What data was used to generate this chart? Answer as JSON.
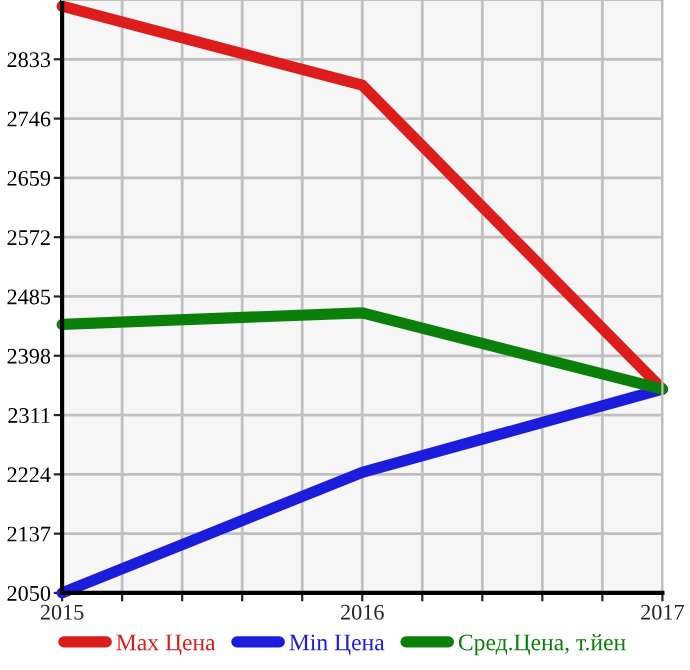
{
  "chart_data": {
    "type": "line",
    "x": [
      2015,
      2016,
      2017
    ],
    "series": [
      {
        "name": "Max Цена",
        "color": "#dd1c1c",
        "values": [
          2911,
          2795,
          2349
        ]
      },
      {
        "name": "Min Цена",
        "color": "#1c1cdd",
        "values": [
          2050,
          2227,
          2349
        ]
      },
      {
        "name": "Сред.Цена, т.йен",
        "color": "#0a800a",
        "values": [
          2444,
          2461,
          2349
        ]
      }
    ],
    "xlim": [
      2015,
      2017
    ],
    "xticks": [
      2015,
      {
        "value": 2015.2,
        "label": null
      },
      {
        "value": 2015.4,
        "label": null
      },
      {
        "value": 2015.6,
        "label": null
      },
      {
        "value": 2015.8,
        "label": null
      },
      2016,
      {
        "value": 2016.2,
        "label": null
      },
      {
        "value": 2016.4,
        "label": null
      },
      {
        "value": 2016.6,
        "label": null
      },
      {
        "value": 2016.8,
        "label": null
      },
      2017
    ],
    "ylim": [
      2050,
      2920
    ],
    "yticks": [
      2050,
      2137,
      2224,
      2311,
      2398,
      2485,
      2572,
      2659,
      2746,
      2833
    ],
    "grid": true,
    "legend": "bottom",
    "marker": "none",
    "line_style": "solid"
  }
}
